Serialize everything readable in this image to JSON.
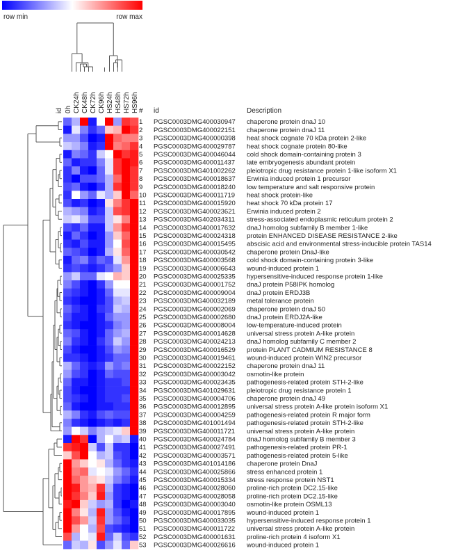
{
  "chart_data": {
    "type": "heatmap",
    "legend": {
      "min_label": "row min",
      "max_label": "row max",
      "min_color": "#0000ff",
      "mid_color": "#ffffff",
      "max_color": "#ff0000"
    },
    "column_header_label": "id",
    "columns": [
      "0h",
      "CK24h",
      "CK48h",
      "CK72h",
      "CK96h",
      "HS24h",
      "HS48h",
      "HS72h",
      "HS96h"
    ],
    "table_headers": {
      "number": "#",
      "id": "id",
      "description": "Description"
    },
    "rows": [
      {
        "n": "1",
        "id": "PGSC0003DMG400030947",
        "desc": "chaperone protein dnaJ 10",
        "v": [
          0.2,
          0.35,
          1,
          0.05,
          0.5,
          1,
          0.3,
          0.9,
          0.85
        ]
      },
      {
        "n": "2",
        "id": "PGSC0003DMG400022151",
        "desc": "chaperone protein dnaJ 11",
        "v": [
          0.05,
          0.45,
          0.25,
          0.1,
          0.2,
          0.6,
          0.65,
          1,
          0.9
        ]
      },
      {
        "n": "3",
        "id": "PGSC0003DMG400000398",
        "desc": "heat shock cognate 70 kDa protein 2-like",
        "v": [
          0.3,
          0.3,
          0.15,
          0,
          0.05,
          1,
          0.8,
          0.75,
          0.75
        ]
      },
      {
        "n": "4",
        "id": "PGSC0003DMG400029787",
        "desc": "heat shock cognate protein 80-like",
        "v": [
          0.4,
          0.35,
          0.25,
          0.05,
          0.1,
          1,
          0.75,
          0.8,
          0.9
        ]
      },
      {
        "n": "5",
        "id": "PGSC0003DMG400046044",
        "desc": "cold shock domain-containing protein 3",
        "v": [
          0.05,
          0.25,
          0.2,
          0.1,
          0.4,
          0.5,
          1,
          0.9,
          0.95
        ]
      },
      {
        "n": "6",
        "id": "PGSC0003DMG400011437",
        "desc": "late embryogenesis abundant protein",
        "v": [
          0.2,
          0.05,
          0.1,
          0.1,
          0.25,
          0.45,
          0.9,
          1,
          0.95
        ]
      },
      {
        "n": "7",
        "id": "PGSC0003DMG401002262",
        "desc": "pleiotropic drug resistance protein 1-like isoform X1",
        "v": [
          0.1,
          0.25,
          0.05,
          0,
          0.2,
          0.45,
          0.9,
          1,
          0.9
        ]
      },
      {
        "n": "8",
        "id": "PGSC0003DMG400018637",
        "desc": "Erwinia induced protein 1 precursor",
        "v": [
          0.1,
          0,
          0.15,
          0.15,
          0.2,
          0.35,
          0.8,
          1,
          0.9
        ]
      },
      {
        "n": "9",
        "id": "PGSC0003DMG400018240",
        "desc": "low temperature and salt responsive protein",
        "v": [
          0.15,
          0.2,
          0.05,
          0,
          0.1,
          0.35,
          0.9,
          1,
          0.9
        ]
      },
      {
        "n": "10",
        "id": "PGSC0003DMG400011719",
        "desc": "heat shock protein-like",
        "v": [
          0.1,
          0.5,
          0.3,
          0.2,
          0.45,
          0.35,
          0.6,
          1,
          0.8
        ]
      },
      {
        "n": "11",
        "id": "PGSC0003DMG400015920",
        "desc": "heat shock 70 kDa protein 17",
        "v": [
          0.15,
          0.05,
          0.1,
          0,
          0.05,
          0.55,
          0.75,
          0.9,
          1
        ]
      },
      {
        "n": "12",
        "id": "PGSC0003DMG400023621",
        "desc": "Erwinia induced protein 2",
        "v": [
          0.35,
          0.3,
          0.25,
          0.05,
          0.1,
          0.4,
          0.85,
          0.9,
          1
        ]
      },
      {
        "n": "13",
        "id": "PGSC0003DMG402034311",
        "desc": "stress-associated endoplasmic reticulum protein 2",
        "v": [
          0.4,
          0.45,
          0.35,
          0.15,
          0.15,
          0.4,
          0.55,
          0.75,
          1
        ]
      },
      {
        "n": "14",
        "id": "PGSC0003DMG400017632",
        "desc": "dnaJ homolog subfamily B member 1-like",
        "v": [
          0.15,
          0.1,
          0.2,
          0.05,
          0.05,
          0.4,
          0.7,
          0.9,
          1
        ]
      },
      {
        "n": "15",
        "id": "PGSC0003DMG400024318",
        "desc": "protein ENHANCED DISEASE RESISTANCE 2-like",
        "v": [
          0.05,
          0.2,
          0.1,
          0,
          0.05,
          0.3,
          0.6,
          0.8,
          1
        ]
      },
      {
        "n": "16",
        "id": "PGSC0003DMG400015495",
        "desc": "abscisic acid and environmental stress-inducible protein TAS14",
        "v": [
          0.1,
          0.05,
          0.15,
          0.05,
          0.05,
          0.3,
          0.5,
          0.85,
          1
        ]
      },
      {
        "n": "17",
        "id": "PGSC0003DMG400030542",
        "desc": "chaperone protein DnaJ-like",
        "v": [
          0.2,
          0.15,
          0.1,
          0,
          0.05,
          0.35,
          0.55,
          0.8,
          1
        ]
      },
      {
        "n": "18",
        "id": "PGSC0003DMG400003568",
        "desc": "cold shock domain-containing protein 3-like",
        "v": [
          0.05,
          0.2,
          0.25,
          0.1,
          0.2,
          0.15,
          0.45,
          0.7,
          1
        ]
      },
      {
        "n": "19",
        "id": "PGSC0003DMG400006643",
        "desc": "wound-induced protein 1",
        "v": [
          0.1,
          0.15,
          0.1,
          0.05,
          0.1,
          0.2,
          0.3,
          0.6,
          1
        ]
      },
      {
        "n": "20",
        "id": "PGSC0003DMG400025335",
        "desc": "hypersensitive-induced response protein 1-like",
        "v": [
          0.3,
          0.4,
          0.2,
          0.2,
          0.45,
          0.5,
          0.65,
          0.6,
          1
        ]
      },
      {
        "n": "21",
        "id": "PGSC0003DMG400001752",
        "desc": "dnaJ protein P58IPK homolog",
        "v": [
          0.25,
          0.15,
          0.05,
          0,
          0.1,
          0.3,
          0.5,
          0.5,
          1
        ]
      },
      {
        "n": "22",
        "id": "PGSC0003DMG400009004",
        "desc": "dnaJ protein ERDJ3B",
        "v": [
          0.15,
          0.1,
          0.05,
          0,
          0.05,
          0.2,
          0.45,
          0.45,
          1
        ]
      },
      {
        "n": "23",
        "id": "PGSC0003DMG400032189",
        "desc": "metal tolerance protein",
        "v": [
          0.1,
          0.05,
          0,
          0,
          0.05,
          0.15,
          0.35,
          0.4,
          1
        ]
      },
      {
        "n": "24",
        "id": "PGSC0003DMG400002069",
        "desc": "chaperone protein dnaJ 50",
        "v": [
          0.2,
          0.1,
          0.05,
          0,
          0.1,
          0.15,
          0.4,
          0.35,
          1
        ]
      },
      {
        "n": "25",
        "id": "PGSC0003DMG400002680",
        "desc": "dnaJ protein ERDJ2A-like",
        "v": [
          0.15,
          0.05,
          0.05,
          0,
          0.05,
          0.2,
          0.3,
          0.3,
          1
        ]
      },
      {
        "n": "26",
        "id": "PGSC0003DMG400008004",
        "desc": "low-temperature-induced protein",
        "v": [
          0.1,
          0.05,
          0,
          0,
          0.05,
          0.1,
          0.25,
          0.3,
          1
        ]
      },
      {
        "n": "27",
        "id": "PGSC0003DMG400014628",
        "desc": "universal stress protein A-like protein",
        "v": [
          0.2,
          0.15,
          0.05,
          0,
          0.05,
          0.2,
          0.3,
          0.35,
          1
        ]
      },
      {
        "n": "28",
        "id": "PGSC0003DMG400024213",
        "desc": "dnaJ homolog subfamily C member 2",
        "v": [
          0.25,
          0.1,
          0.05,
          0,
          0.1,
          0.2,
          0.4,
          0.3,
          1
        ]
      },
      {
        "n": "29",
        "id": "PGSC0003DMG400016529",
        "desc": "protein PLANT CADMIUM RESISTANCE 8",
        "v": [
          0.15,
          0.05,
          0,
          0,
          0.05,
          0.15,
          0.3,
          0.25,
          1
        ]
      },
      {
        "n": "30",
        "id": "PGSC0003DMG400019461",
        "desc": "wound-induced protein WIN2 precursor",
        "v": [
          0.1,
          0.1,
          0.05,
          0,
          0.05,
          0.1,
          0.2,
          0.2,
          1
        ]
      },
      {
        "n": "31",
        "id": "PGSC0003DMG400022152",
        "desc": "chaperone protein dnaJ 11",
        "v": [
          0.35,
          0.2,
          0.1,
          0.05,
          0.1,
          0.3,
          0.2,
          0.25,
          1
        ]
      },
      {
        "n": "32",
        "id": "PGSC0003DMG400003042",
        "desc": "osmotin-like protein",
        "v": [
          0.3,
          0.15,
          0.1,
          0,
          0.05,
          0.2,
          0.15,
          0.15,
          1
        ]
      },
      {
        "n": "33",
        "id": "PGSC0003DMG400023435",
        "desc": "pathogenesis-related protein STH-2-like",
        "v": [
          0.2,
          0.05,
          0.05,
          0,
          0.05,
          0.1,
          0.1,
          0.15,
          1
        ]
      },
      {
        "n": "34",
        "id": "PGSC0003DMG401029631",
        "desc": "pleiotropic drug resistance protein 1",
        "v": [
          0.15,
          0.05,
          0,
          0,
          0.05,
          0.1,
          0.1,
          0.1,
          1
        ]
      },
      {
        "n": "35",
        "id": "PGSC0003DMG400004706",
        "desc": "chaperone protein dnaJ 49",
        "v": [
          0.15,
          0.1,
          0.05,
          0,
          0.05,
          0.1,
          0.1,
          0.15,
          1
        ]
      },
      {
        "n": "36",
        "id": "PGSC0003DMG400012895",
        "desc": "universal stress protein A-like protein isoform X1",
        "v": [
          0.2,
          0.05,
          0,
          0,
          0.05,
          0.05,
          0.1,
          0.1,
          1
        ]
      },
      {
        "n": "37",
        "id": "PGSC0003DMG400004259",
        "desc": "pathogenesis-related protein R major form",
        "v": [
          0.35,
          0.25,
          0.1,
          0.05,
          0.15,
          0.2,
          0.15,
          0.15,
          1
        ]
      },
      {
        "n": "38",
        "id": "PGSC0003DMG401001494",
        "desc": "pathogenesis-related protein STH-2-like",
        "v": [
          0.25,
          0.1,
          0.05,
          0,
          0.05,
          0.1,
          0.05,
          0.1,
          1
        ]
      },
      {
        "n": "39",
        "id": "PGSC0003DMG400011721",
        "desc": "universal stress protein A-like protein",
        "v": [
          0.3,
          0.5,
          0.4,
          0.25,
          0.35,
          0.4,
          0.45,
          0.6,
          1
        ]
      },
      {
        "n": "40",
        "id": "PGSC0003DMG400024784",
        "desc": "dnaJ homolog subfamily B member 3",
        "v": [
          0.05,
          1,
          0.9,
          0,
          0.35,
          0.5,
          0.35,
          0.4,
          0.05
        ]
      },
      {
        "n": "41",
        "id": "PGSC0003DMG400027491",
        "desc": "pathogenesis-related protein PR-1",
        "v": [
          0.9,
          0.95,
          1,
          0.4,
          0.15,
          0.4,
          0.1,
          0.1,
          0
        ]
      },
      {
        "n": "42",
        "id": "PGSC0003DMG400003571",
        "desc": "pathogenesis-related protein 5-like",
        "v": [
          0.6,
          0.85,
          1,
          0.5,
          0.35,
          0.4,
          0.15,
          0.1,
          0
        ]
      },
      {
        "n": "43",
        "id": "PGSC0003DMG401014186",
        "desc": "chaperone protein DnaJ",
        "v": [
          1,
          0.7,
          0.6,
          0.5,
          0.55,
          0.35,
          0.2,
          0.1,
          0.05
        ]
      },
      {
        "n": "44",
        "id": "PGSC0003DMG400025866",
        "desc": "stress enhanced protein 1",
        "v": [
          1,
          0.75,
          0.8,
          0.45,
          0.5,
          0.45,
          0.3,
          0.2,
          0.1
        ]
      },
      {
        "n": "45",
        "id": "PGSC0003DMG400015334",
        "desc": "stress response protein NST1",
        "v": [
          1,
          0.8,
          0.7,
          0.6,
          0.55,
          0.4,
          0.25,
          0.15,
          0.05
        ]
      },
      {
        "n": "46",
        "id": "PGSC0003DMG400028060",
        "desc": "proline-rich protein DC2.15-like",
        "v": [
          1,
          0.95,
          0.7,
          0.65,
          0.9,
          0.35,
          0.1,
          0.05,
          0
        ]
      },
      {
        "n": "47",
        "id": "PGSC0003DMG400028058",
        "desc": "proline-rich protein DC2.15-like",
        "v": [
          1,
          0.9,
          0.75,
          0.6,
          0.95,
          0.3,
          0.1,
          0.05,
          0
        ]
      },
      {
        "n": "48",
        "id": "PGSC0003DMG400003040",
        "desc": "osmotin-like protein OSML13",
        "v": [
          0.95,
          1,
          0.6,
          0.4,
          0.3,
          0.35,
          0.1,
          0,
          0.05
        ]
      },
      {
        "n": "49",
        "id": "PGSC0003DMG400017895",
        "desc": "wound-induced protein 1",
        "v": [
          1,
          0.75,
          0.55,
          0.35,
          0.95,
          0.3,
          0.15,
          0.05,
          0
        ]
      },
      {
        "n": "50",
        "id": "PGSC0003DMG400033035",
        "desc": "hypersensitive-induced response protein 1",
        "v": [
          1,
          0.85,
          0.7,
          0.4,
          0.9,
          0.3,
          0.2,
          0.1,
          0
        ]
      },
      {
        "n": "51",
        "id": "PGSC0003DMG400011722",
        "desc": "universal stress protein A-like protein",
        "v": [
          1,
          0.7,
          0.5,
          0.35,
          0.85,
          0.15,
          0.1,
          0.05,
          0
        ]
      },
      {
        "n": "52",
        "id": "PGSC0003DMG400001631",
        "desc": "proline-rich protein 4 isoform X1",
        "v": [
          0.85,
          0.35,
          0.5,
          0.45,
          0.95,
          0.2,
          0.4,
          0.15,
          0.1
        ]
      },
      {
        "n": "53",
        "id": "PGSC0003DMG400026616",
        "desc": "wound-induced protein 1",
        "v": [
          0.2,
          0.4,
          0.35,
          0.55,
          0.15,
          0.3,
          0.45,
          0.2,
          0.6
        ]
      }
    ]
  }
}
